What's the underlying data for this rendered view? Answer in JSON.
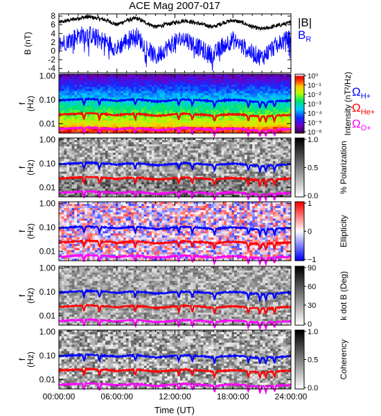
{
  "chart_data": {
    "title": "ACE Mag 2007-017",
    "type": "line",
    "xlabel": "Time (UT)",
    "x_tick_labels": [
      "00:00:00",
      "06:00:00",
      "12:00:00",
      "18:00:00",
      "24:00:00"
    ],
    "xlim_hours": [
      0,
      24
    ],
    "panels": [
      {
        "id": "b",
        "type": "line",
        "ylabel": "B (nT)",
        "ylim": [
          -5,
          8.5
        ],
        "y_ticks": [
          -4,
          -2,
          0,
          2,
          4,
          6,
          8
        ],
        "y_tick_labels": [
          "-4",
          "-2",
          "0",
          "2",
          "4",
          "6",
          "8"
        ],
        "series": [
          {
            "name": "|B|",
            "color": "#000000",
            "x": [
              0,
              1,
              2,
              3,
              4,
              5,
              6,
              7,
              8,
              9,
              10,
              11,
              12,
              13,
              14,
              15,
              16,
              17,
              18,
              19,
              20,
              21,
              22,
              23,
              24
            ],
            "y": [
              6.5,
              7.0,
              7.5,
              7.8,
              7.5,
              7.0,
              6.0,
              7.0,
              7.5,
              6.5,
              5.5,
              6.0,
              6.5,
              7.0,
              6.5,
              6.0,
              5.5,
              6.5,
              7.0,
              6.5,
              5.5,
              5.0,
              5.5,
              6.0,
              6.5
            ]
          },
          {
            "name": "B",
            "subscript": "R",
            "color": "#0000ff",
            "x": [
              0,
              1,
              2,
              3,
              4,
              5,
              6,
              7,
              8,
              9,
              10,
              11,
              12,
              13,
              14,
              15,
              16,
              17,
              18,
              19,
              20,
              21,
              22,
              23,
              24
            ],
            "y": [
              1.5,
              2.5,
              3.5,
              4.0,
              3.0,
              2.0,
              0.5,
              2.5,
              3.5,
              1.0,
              -1.5,
              0.5,
              2.0,
              3.0,
              1.5,
              0.0,
              -1.0,
              1.5,
              2.5,
              1.0,
              -0.5,
              -1.5,
              0.5,
              2.0,
              3.0
            ]
          }
        ]
      },
      {
        "id": "spectrum",
        "type": "heatmap",
        "ylabel": "f (Hz)",
        "ylim": [
          0.004,
          1.2
        ],
        "y_scale": "log",
        "y_tick_labels": [
          "1.00",
          "0.10",
          "0.01"
        ],
        "colorbar": {
          "label": "Intensity (nT²/Hz)",
          "tick_labels": [
            "10⁰",
            "10⁻¹",
            "10⁻²",
            "10⁻³",
            "10⁻⁴",
            "10⁻⁵",
            "10⁻⁶"
          ],
          "scale": "log",
          "range": [
            "1e-6",
            "1e0"
          ]
        }
      },
      {
        "id": "polarization",
        "type": "heatmap",
        "ylabel": "f (Hz)",
        "ylim": [
          0.004,
          1.2
        ],
        "y_scale": "log",
        "y_tick_labels": [
          "1.00",
          "0.10",
          "0.01"
        ],
        "colorbar": {
          "label": "% Polarization",
          "tick_labels": [
            "1.0",
            "0.5",
            "0.0"
          ],
          "range": [
            0,
            1
          ]
        }
      },
      {
        "id": "ellipticity",
        "type": "heatmap",
        "ylabel": "f (Hz)",
        "ylim": [
          0.004,
          1.2
        ],
        "y_scale": "log",
        "y_tick_labels": [
          "1.00",
          "0.10",
          "0.01"
        ],
        "colorbar": {
          "label": "Ellipticity",
          "tick_labels": [
            "1",
            "0",
            "−1"
          ],
          "range": [
            -1,
            1
          ]
        }
      },
      {
        "id": "kdotb",
        "type": "heatmap",
        "ylabel": "f (Hz)",
        "ylim": [
          0.004,
          1.2
        ],
        "y_scale": "log",
        "y_tick_labels": [
          "1.00",
          "0.10",
          "0.01"
        ],
        "colorbar": {
          "label": "k dot B (Deg)",
          "tick_labels": [
            "90",
            "60",
            "30",
            "0"
          ],
          "range": [
            0,
            90
          ]
        }
      },
      {
        "id": "coherency",
        "type": "heatmap",
        "ylabel": "f (Hz)",
        "ylim": [
          0.004,
          1.2
        ],
        "y_scale": "log",
        "y_tick_labels": [
          "1.00",
          "0.10",
          "0.01"
        ],
        "colorbar": {
          "label": "Coherency",
          "tick_labels": [
            "1.0",
            "0.5",
            "0.0"
          ],
          "range": [
            0,
            1
          ]
        }
      }
    ],
    "gyro_lines": [
      {
        "name": "Ω",
        "subscript": "H+",
        "color": "#0000ff",
        "ratio": 1
      },
      {
        "name": "Ω",
        "subscript": "He+",
        "color": "#ff0000",
        "ratio": 0.25
      },
      {
        "name": "Ω",
        "subscript": "O+",
        "color": "#ff00ff",
        "ratio": 0.0625
      }
    ],
    "gyro_base_Hz": {
      "x": [
        0,
        1,
        2,
        3,
        4,
        5,
        6,
        7,
        8,
        9,
        10,
        11,
        12,
        13,
        14,
        15,
        16,
        17,
        18,
        19,
        20,
        21,
        22,
        23,
        24
      ],
      "y": [
        0.095,
        0.1,
        0.105,
        0.11,
        0.105,
        0.1,
        0.09,
        0.1,
        0.105,
        0.095,
        0.085,
        0.09,
        0.1,
        0.105,
        0.1,
        0.095,
        0.085,
        0.095,
        0.1,
        0.095,
        0.085,
        0.08,
        0.085,
        0.09,
        0.095
      ]
    },
    "gyro_dips_hours": [
      2.6,
      4.2,
      7.9,
      12.4,
      13.8,
      16.1,
      19.6,
      20.8,
      21.4,
      22.3
    ]
  }
}
